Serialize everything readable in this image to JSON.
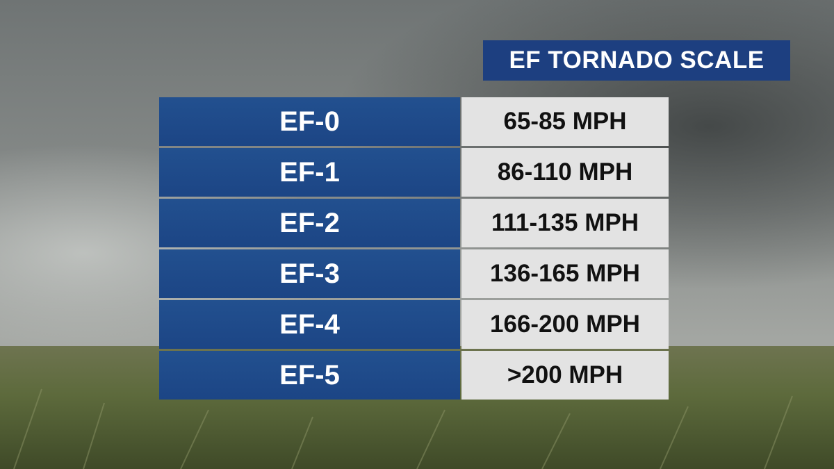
{
  "title": "EF TORNADO SCALE",
  "table": {
    "rows": [
      [
        "EF-0",
        "65-85 MPH"
      ],
      [
        "EF-1",
        "86-110 MPH"
      ],
      [
        "EF-2",
        "111-135 MPH"
      ],
      [
        "EF-3",
        "136-165 MPH"
      ],
      [
        "EF-4",
        "166-200 MPH"
      ],
      [
        "EF-5",
        ">200 MPH"
      ]
    ]
  }
}
